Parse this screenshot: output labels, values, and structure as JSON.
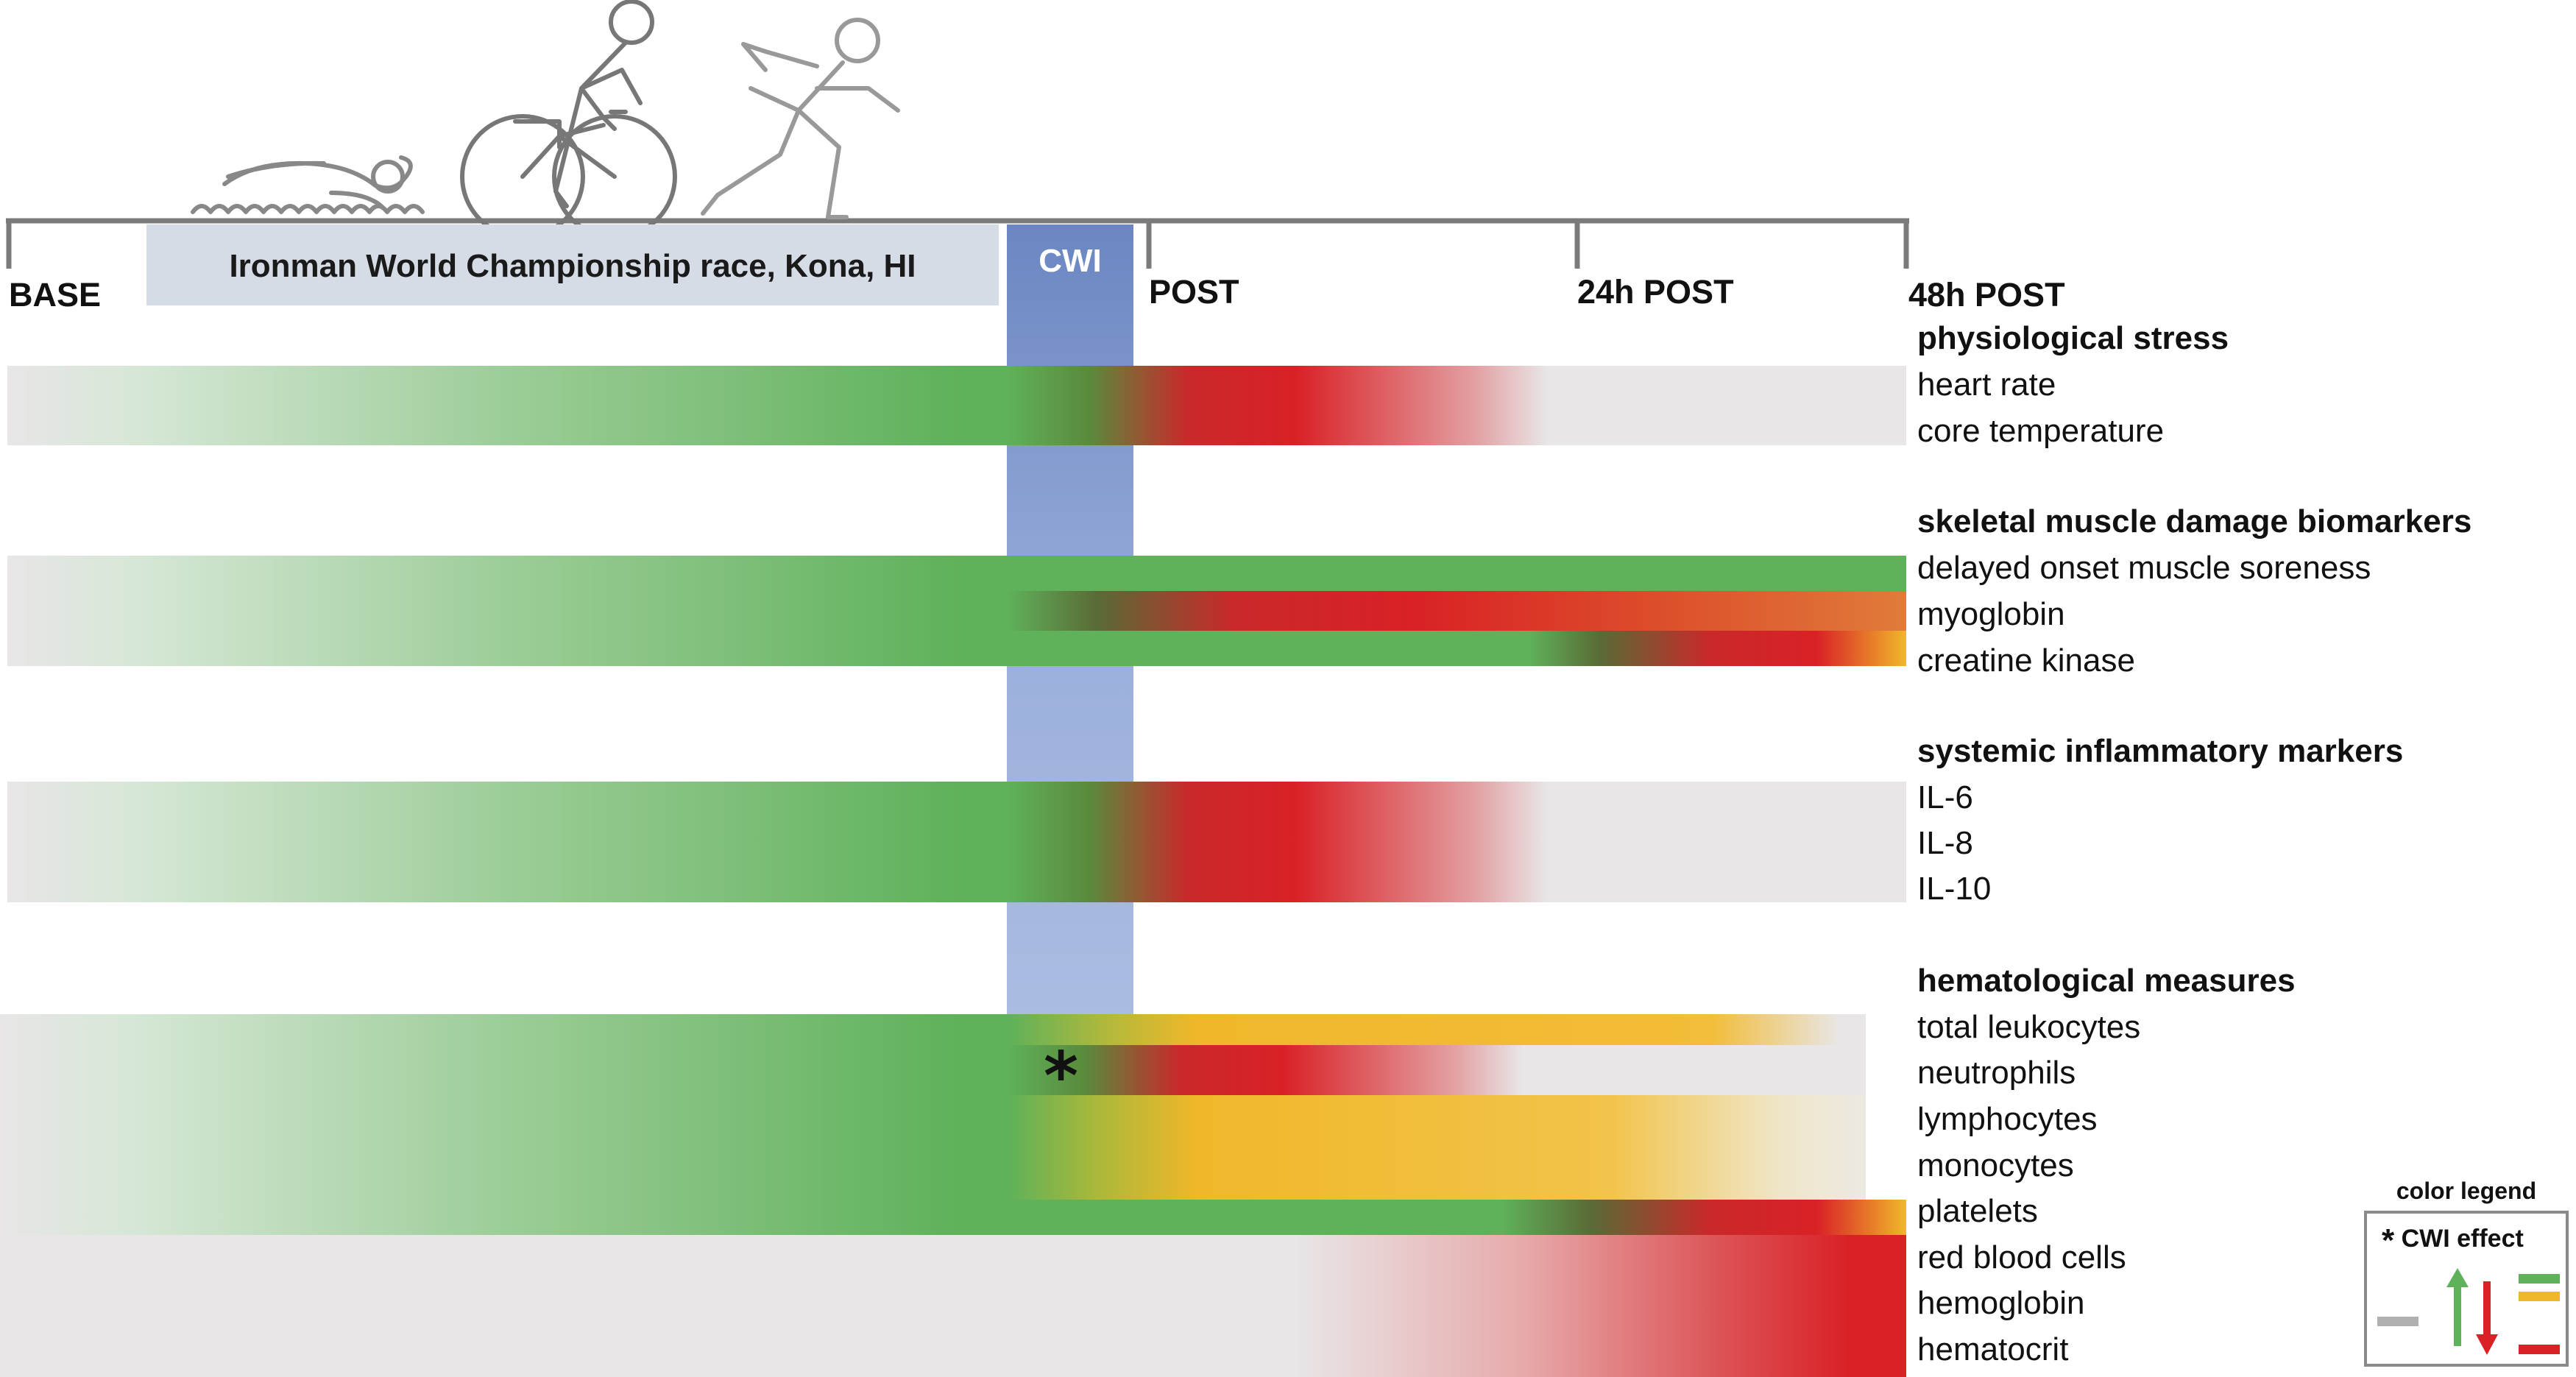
{
  "timeline": {
    "base": "BASE",
    "race": "Ironman World Championship race, Kona, HI",
    "cwi": "CWI",
    "post": "POST",
    "post24": "24h POST",
    "post48": "48h POST"
  },
  "groups": [
    {
      "title": "physiological stress",
      "items": [
        "heart rate",
        "core temperature"
      ]
    },
    {
      "title": "skeletal muscle damage biomarkers",
      "items": [
        "delayed onset muscle soreness",
        "myoglobin",
        "creatine kinase"
      ]
    },
    {
      "title": "systemic inflammatory markers",
      "items": [
        "IL-6",
        "IL-8",
        "IL-10"
      ]
    },
    {
      "title": "hematological measures",
      "items": [
        "total leukocytes",
        "neutrophils",
        "lymphocytes",
        "monocytes",
        "platelets",
        "red blood cells",
        "hemoglobin",
        "hematocrit"
      ]
    }
  ],
  "cwi_effect_marker": "*",
  "legend": {
    "title": "color legend",
    "cwi_effect": "CWI effect",
    "star": "*"
  },
  "colors": {
    "green": "#5fb15a",
    "red": "#d92126",
    "yellow": "#f0b72a",
    "orange": "#e07b3a",
    "gray": "#e8e6e7",
    "cwi_top": "#6b86c2",
    "cwi_bottom": "#b8c7e6",
    "axis": "#7b7b7b"
  },
  "icons": [
    "swimmer-icon",
    "cyclist-icon",
    "runner-icon"
  ]
}
